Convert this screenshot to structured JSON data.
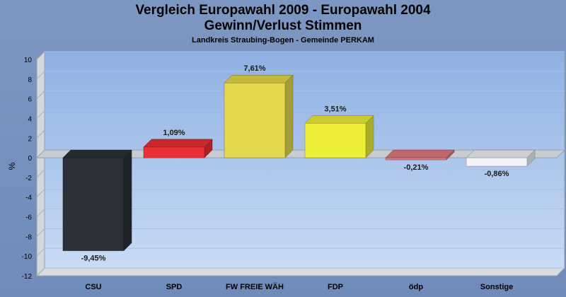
{
  "chart_data": {
    "type": "bar",
    "title": "Vergleich Europawahl 2009 - Europawahl 2004",
    "title_line2": "Gewinn/Verlust Stimmen",
    "subtitle": "Landkreis Straubing-Bogen - Gemeinde PERKAM",
    "ylabel": "%",
    "ylim": [
      -12,
      10
    ],
    "yticks": [
      10,
      8,
      6,
      4,
      2,
      0,
      -2,
      -4,
      -6,
      -8,
      -10,
      -12
    ],
    "grid": true,
    "categories": [
      "CSU",
      "SPD",
      "FW FREIE WÄH",
      "FDP",
      "ödp",
      "Sonstige"
    ],
    "values": [
      -9.45,
      1.09,
      7.61,
      3.51,
      -0.21,
      -0.86
    ],
    "value_labels": [
      "-9,45%",
      "1,09%",
      "7,61%",
      "3,51%",
      "-0,21%",
      "-0,86%"
    ],
    "colors": [
      "#2d3039",
      "#ee2e36",
      "#e4d84d",
      "#eef037",
      "#e07a80",
      "#f2f4fa"
    ]
  }
}
